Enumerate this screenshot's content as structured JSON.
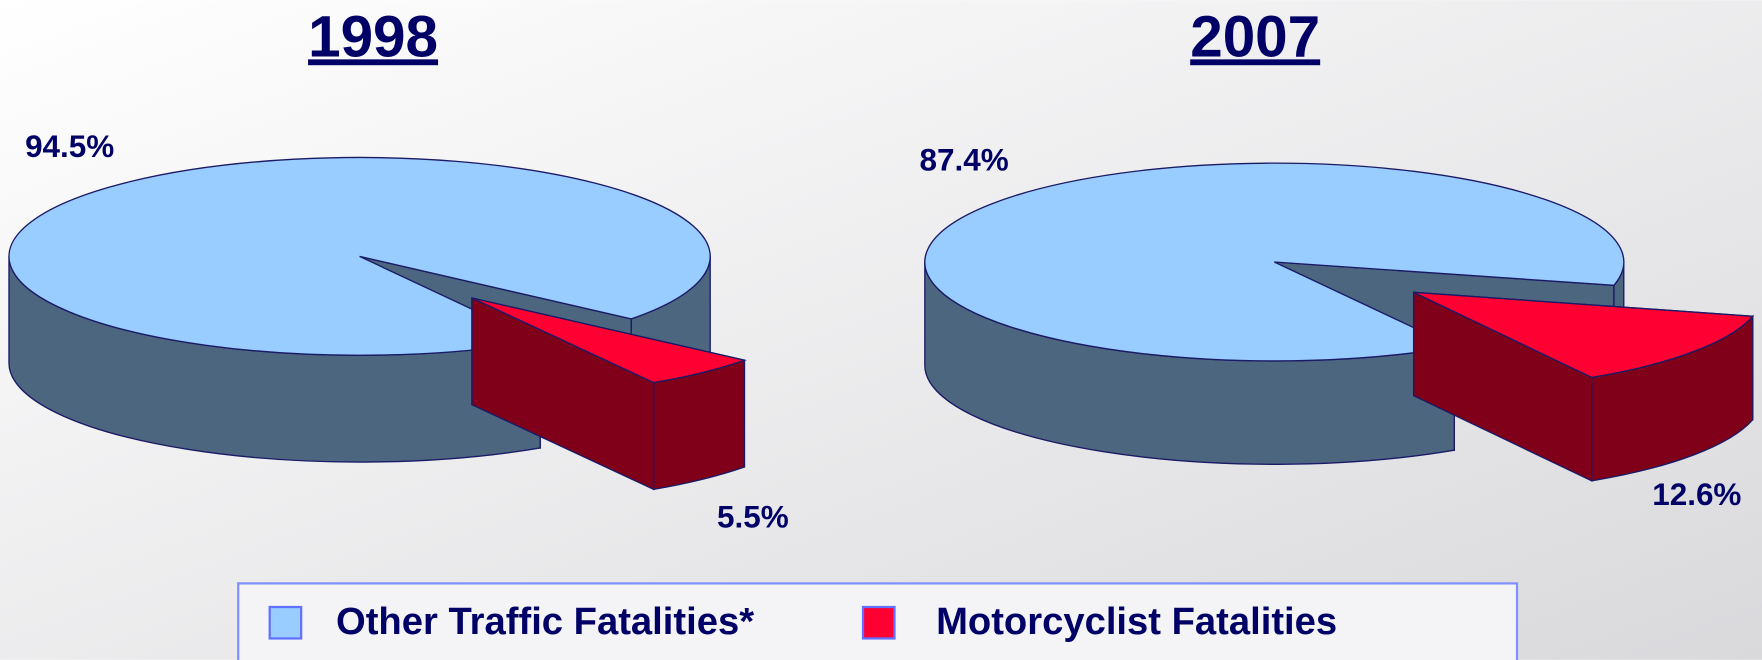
{
  "chart_data": [
    {
      "type": "pie",
      "title": "1998",
      "categories": [
        "Other Traffic Fatalities*",
        "Motorcyclist Fatalities"
      ],
      "values": [
        94.5,
        5.5
      ],
      "value_labels": [
        "94.5%",
        "5.5%"
      ],
      "colors": [
        "#99ccff",
        "#ff0033"
      ],
      "legend": "bottom"
    },
    {
      "type": "pie",
      "title": "2007",
      "categories": [
        "Other Traffic Fatalities*",
        "Motorcyclist Fatalities"
      ],
      "values": [
        87.4,
        12.6
      ],
      "value_labels": [
        "87.4%",
        "12.6%"
      ],
      "colors": [
        "#99ccff",
        "#ff0033"
      ],
      "legend": "bottom"
    }
  ]
}
